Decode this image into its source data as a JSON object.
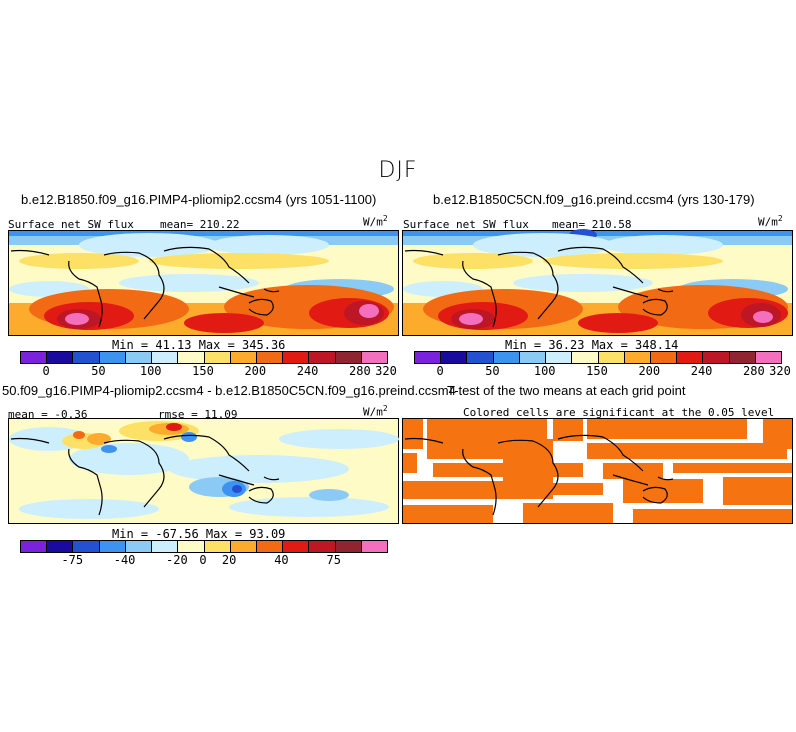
{
  "season": "DJF",
  "panel1": {
    "case": "b.e12.B1850.f09_g16.PIMP4-pliomip2.ccsm4 (yrs 1051-1100)",
    "variable": "Surface net SW flux",
    "mean": "mean= 210.22",
    "units_base": "W/m",
    "units_exp": "2",
    "minmax": "Min =  41.13 Max = 345.36"
  },
  "panel2": {
    "case": "b.e12.B1850C5CN.f09_g16.preind.ccsm4 (yrs 130-179)",
    "variable": "Surface net SW flux",
    "mean": "mean= 210.58",
    "units_base": "W/m",
    "units_exp": "2",
    "minmax": "Min =  36.23 Max = 348.14"
  },
  "panel3": {
    "case": "50.f09_g16.PIMP4-pliomip2.ccsm4 - b.e12.B1850C5CN.f09_g16.preind.ccsm4",
    "mean": "mean =  -0.36",
    "rmse": "rmse =  11.09",
    "units_base": "W/m",
    "units_exp": "2",
    "minmax": "Min = -67.56 Max =  93.09"
  },
  "panel4": {
    "title": "T-test of the two means at each grid point",
    "subtitle": "Colored cells are significant at the 0.05 level"
  },
  "colorbar_abs": {
    "colors": [
      "#7a22dc",
      "#1a0aa0",
      "#2450d2",
      "#3c94f0",
      "#8ccaf6",
      "#cdeefc",
      "#fefbc6",
      "#fde066",
      "#fcab2c",
      "#f26b14",
      "#e21a14",
      "#bd1624",
      "#902430",
      "#f46fbe"
    ],
    "ticks": [
      "0",
      "50",
      "100",
      "150",
      "200",
      "240",
      "280",
      "320"
    ]
  },
  "colorbar_diff": {
    "colors": [
      "#7a22dc",
      "#1a0aa0",
      "#2450d2",
      "#3c94f0",
      "#8ccaf6",
      "#cdeefc",
      "#fefbc6",
      "#fde066",
      "#fcab2c",
      "#f26b14",
      "#e21a14",
      "#bd1624",
      "#902430",
      "#f46fbe"
    ],
    "ticks": [
      "-75",
      "-40",
      "-20",
      "0",
      "20",
      "40",
      "75"
    ]
  },
  "colors": {
    "significance": "#f57311",
    "coast": "#000000"
  }
}
